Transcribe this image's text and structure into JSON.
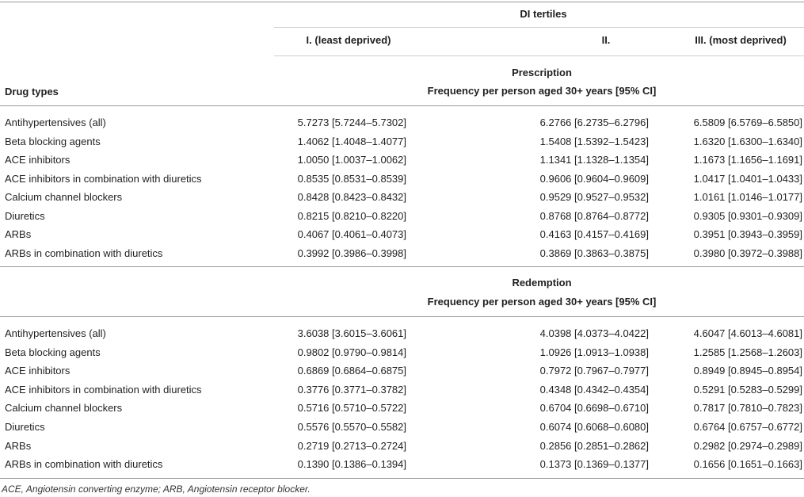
{
  "header": {
    "group_title": "DI tertiles",
    "columns": [
      "I. (least deprived)",
      "II.",
      "III. (most deprived)"
    ],
    "row_header": "Drug types"
  },
  "prescription": {
    "title": "Prescription",
    "subtitle": "Frequency per person aged 30+ years [95% CI]",
    "rows": [
      {
        "drug": "Antihypertensives (all)",
        "v1": "5.7273 [5.7244–5.7302]",
        "v2": "6.2766 [6.2735–6.2796]",
        "v3": "6.5809 [6.5769–6.5850]"
      },
      {
        "drug": "Beta blocking agents",
        "v1": "1.4062 [1.4048–1.4077]",
        "v2": "1.5408 [1.5392–1.5423]",
        "v3": "1.6320 [1.6300–1.6340]"
      },
      {
        "drug": "ACE inhibitors",
        "v1": "1.0050 [1.0037–1.0062]",
        "v2": "1.1341 [1.1328–1.1354]",
        "v3": "1.1673 [1.1656–1.1691]"
      },
      {
        "drug": "ACE inhibitors in combination with diuretics",
        "v1": "0.8535 [0.8531–0.8539]",
        "v2": "0.9606 [0.9604–0.9609]",
        "v3": "1.0417 [1.0401–1.0433]"
      },
      {
        "drug": "Calcium channel blockers",
        "v1": "0.8428 [0.8423–0.8432]",
        "v2": "0.9529 [0.9527–0.9532]",
        "v3": "1.0161 [1.0146–1.0177]"
      },
      {
        "drug": "Diuretics",
        "v1": "0.8215 [0.8210–0.8220]",
        "v2": "0.8768 [0.8764–0.8772]",
        "v3": "0.9305 [0.9301–0.9309]"
      },
      {
        "drug": "ARBs",
        "v1": "0.4067 [0.4061–0.4073]",
        "v2": "0.4163 [0.4157–0.4169]",
        "v3": "0.3951 [0.3943–0.3959]"
      },
      {
        "drug": "ARBs in combination with diuretics",
        "v1": "0.3992 [0.3986–0.3998]",
        "v2": "0.3869 [0.3863–0.3875]",
        "v3": "0.3980 [0.3972–0.3988]"
      }
    ]
  },
  "redemption": {
    "title": "Redemption",
    "subtitle": "Frequency per person aged 30+ years [95% CI]",
    "rows": [
      {
        "drug": "Antihypertensives (all)",
        "v1": "3.6038 [3.6015–3.6061]",
        "v2": "4.0398 [4.0373–4.0422]",
        "v3": "4.6047 [4.6013–4.6081]"
      },
      {
        "drug": "Beta blocking agents",
        "v1": "0.9802 [0.9790–0.9814]",
        "v2": "1.0926 [1.0913–1.0938]",
        "v3": "1.2585 [1.2568–1.2603]"
      },
      {
        "drug": "ACE inhibitors",
        "v1": "0.6869 [0.6864–0.6875]",
        "v2": "0.7972 [0.7967–0.7977]",
        "v3": "0.8949 [0.8945–0.8954]"
      },
      {
        "drug": "ACE inhibitors in combination with diuretics",
        "v1": "0.3776 [0.3771–0.3782]",
        "v2": "0.4348 [0.4342–0.4354]",
        "v3": "0.5291 [0.5283–0.5299]"
      },
      {
        "drug": "Calcium channel blockers",
        "v1": "0.5716 [0.5710–0.5722]",
        "v2": "0.6704 [0.6698–0.6710]",
        "v3": "0.7817 [0.7810–0.7823]"
      },
      {
        "drug": "Diuretics",
        "v1": "0.5576 [0.5570–0.5582]",
        "v2": "0.6074 [0.6068–0.6080]",
        "v3": "0.6764 [0.6757–0.6772]"
      },
      {
        "drug": "ARBs",
        "v1": "0.2719 [0.2713–0.2724]",
        "v2": "0.2856 [0.2851–0.2862]",
        "v3": "0.2982 [0.2974–0.2989]"
      },
      {
        "drug": "ARBs in combination with diuretics",
        "v1": "0.1390 [0.1386–0.1394]",
        "v2": "0.1373 [0.1369–0.1377]",
        "v3": "0.1656 [0.1651–0.1663]"
      }
    ]
  },
  "footnote": "ACE, Angiotensin converting enzyme; ARB, Angiotensin receptor blocker."
}
